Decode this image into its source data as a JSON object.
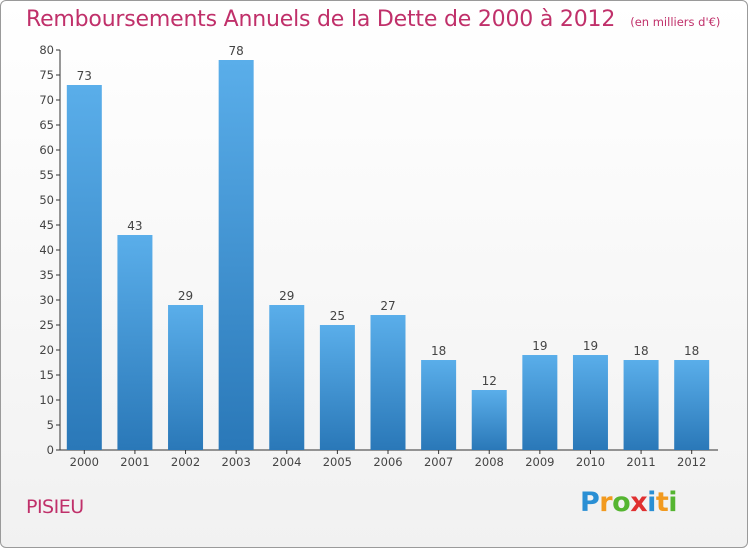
{
  "title": "Remboursements Annuels de la Dette de 2000 à 2012",
  "subtitle": "(en milliers d'€)",
  "commune": "PISIEU",
  "logo": {
    "letters": [
      "P",
      "r",
      "o",
      "x",
      "i",
      "t",
      "i"
    ],
    "colors": [
      "#2a8fd4",
      "#f29a1f",
      "#55b531",
      "#e03030",
      "#2a8fd4",
      "#f29a1f",
      "#55b531"
    ]
  },
  "colors": {
    "bar_top": "#5aaeea",
    "bar_bottom": "#2a78b8",
    "title": "#c0306a"
  },
  "chart_data": {
    "type": "bar",
    "categories": [
      "2000",
      "2001",
      "2002",
      "2003",
      "2004",
      "2005",
      "2006",
      "2007",
      "2008",
      "2009",
      "2010",
      "2011",
      "2012"
    ],
    "values": [
      73,
      43,
      29,
      78,
      29,
      25,
      27,
      18,
      12,
      19,
      19,
      18,
      18
    ],
    "ylim": [
      0,
      80
    ],
    "yticks": [
      0,
      5,
      10,
      15,
      20,
      25,
      30,
      35,
      40,
      45,
      50,
      55,
      60,
      65,
      70,
      75,
      80
    ],
    "grid": false,
    "data_labels": true
  }
}
